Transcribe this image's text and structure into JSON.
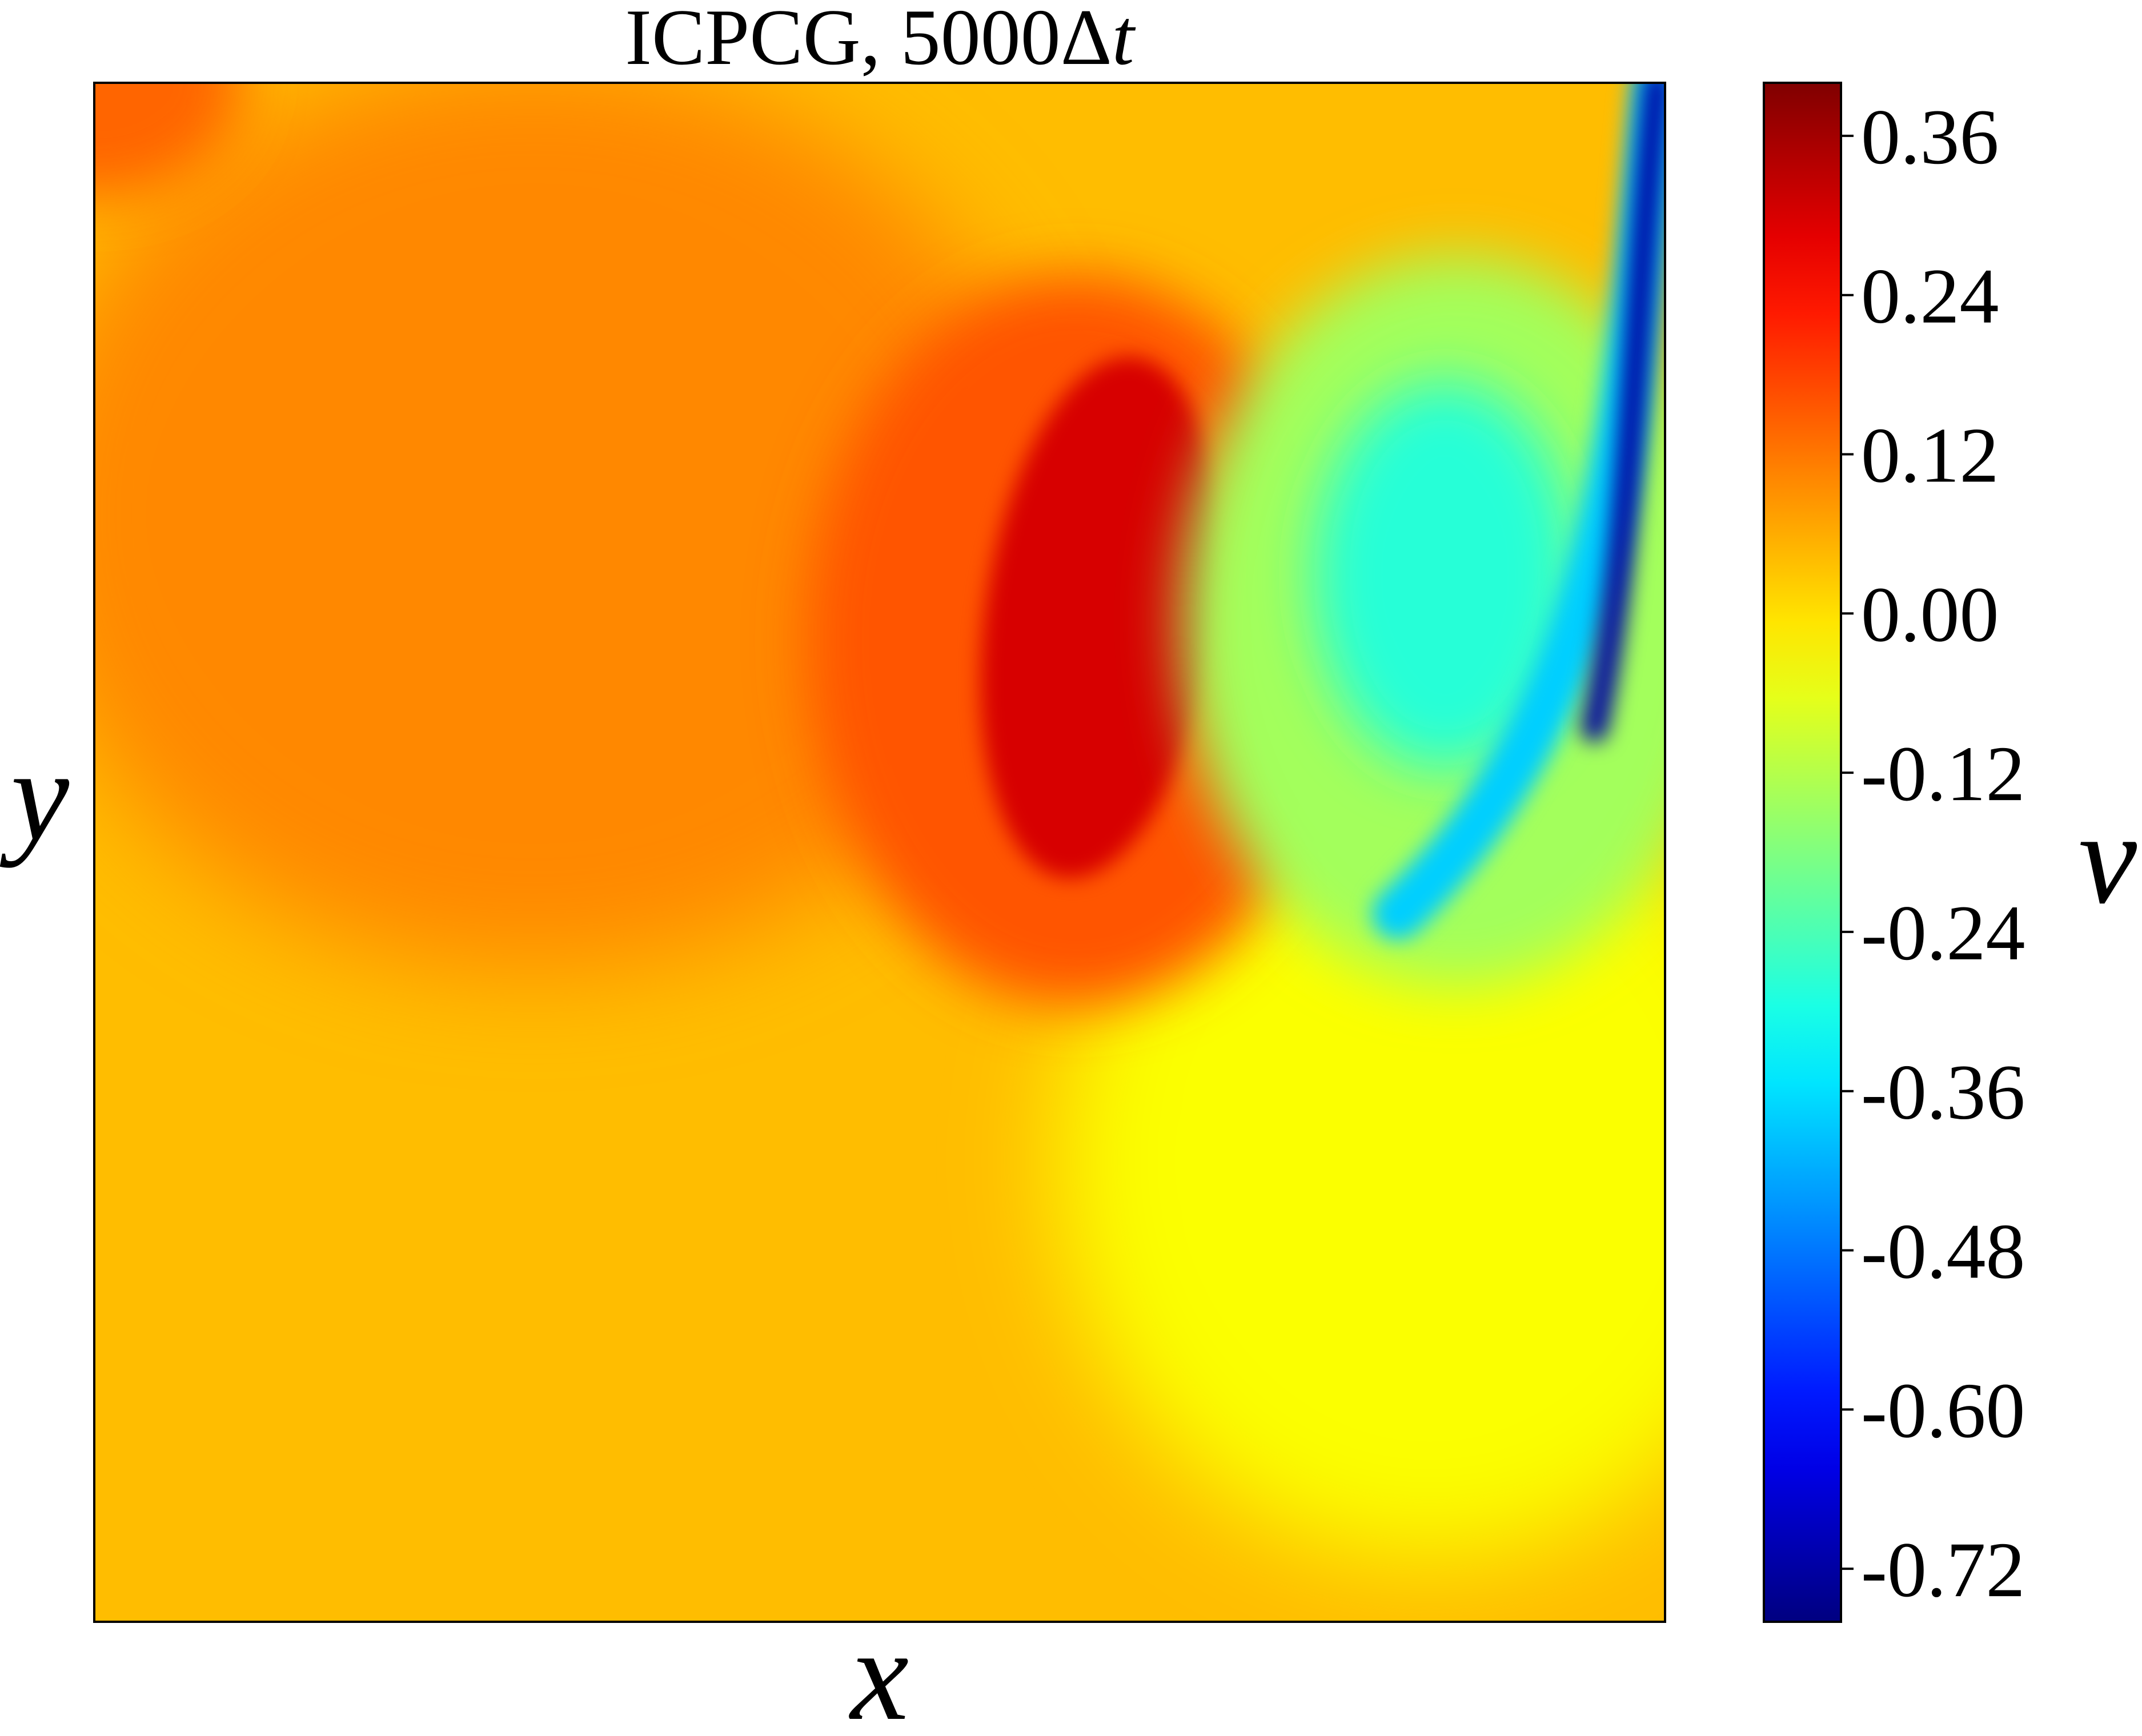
{
  "chart_data": {
    "type": "heatmap",
    "title_main": "ICPCG, 5000Δ",
    "title_italic": "t",
    "xlabel": "x",
    "ylabel": "y",
    "colorbar_label": "v",
    "colormap": "jet",
    "vmin": -0.76,
    "vmax": 0.4,
    "colorbar_ticks": [
      {
        "value": 0.36,
        "label": "0.36"
      },
      {
        "value": 0.24,
        "label": "0.24"
      },
      {
        "value": 0.12,
        "label": "0.12"
      },
      {
        "value": 0.0,
        "label": "0.00"
      },
      {
        "value": -0.12,
        "label": "-0.12"
      },
      {
        "value": -0.24,
        "label": "-0.24"
      },
      {
        "value": -0.36,
        "label": "-0.36"
      },
      {
        "value": -0.48,
        "label": "-0.48"
      },
      {
        "value": -0.6,
        "label": "-0.60"
      },
      {
        "value": -0.72,
        "label": "-0.72"
      }
    ],
    "x_range": [
      0,
      1
    ],
    "y_range": [
      0,
      1
    ],
    "field_features": [
      {
        "feature": "background",
        "approx_value": 0.04
      },
      {
        "feature": "positive vortex lobe",
        "approx_value": 0.3,
        "center": [
          0.64,
          0.66
        ]
      },
      {
        "feature": "negative vortex lobe",
        "approx_value": -0.28,
        "center": [
          0.86,
          0.68
        ]
      },
      {
        "feature": "right-wall jet",
        "approx_value": -0.72,
        "center": [
          0.99,
          0.85
        ]
      },
      {
        "feature": "lower-right region",
        "approx_value": -0.04,
        "center": [
          0.85,
          0.3
        ]
      }
    ]
  }
}
